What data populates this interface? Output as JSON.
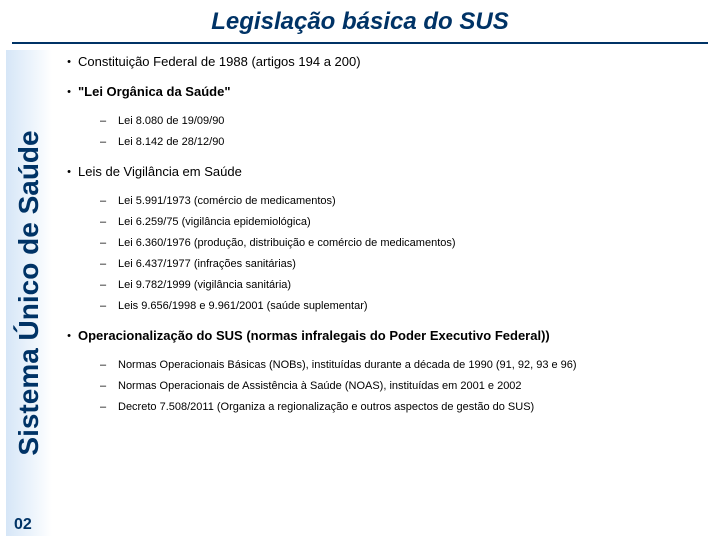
{
  "title": "Legislação básica do SUS",
  "sidebar_label": "Sistema Único de Saúde",
  "page_number": "02",
  "colors": {
    "title": "#003366",
    "sidebar_text": "#003366",
    "body_text": "#000000",
    "sidebar_grad_start": "#d6e6f7",
    "sidebar_grad_end": "#ffffff",
    "divider": "#003366"
  },
  "typography": {
    "title_fontsize": 24,
    "sidebar_fontsize": 28,
    "bullet_fontsize": 13,
    "sub_fontsize": 11
  },
  "bullets": {
    "b1": {
      "text": "Constituição Federal de 1988 (artigos 194 a 200)",
      "bold": false
    },
    "b2": {
      "text": "\"Lei Orgânica da Saúde\"",
      "bold": true
    },
    "b2_sub": {
      "s1": "Lei 8.080 de 19/09/90",
      "s2": "Lei 8.142 de 28/12/90"
    },
    "b3": {
      "text": "Leis de Vigilância em Saúde",
      "bold": false
    },
    "b3_sub": {
      "s1": "Lei 5.991/1973 (comércio de medicamentos)",
      "s2": "Lei 6.259/75 (vigilância epidemiológica)",
      "s3": "Lei 6.360/1976 (produção, distribuição e comércio de medicamentos)",
      "s4": "Lei 6.437/1977 (infrações sanitárias)",
      "s5": "Lei 9.782/1999 (vigilância sanitária)",
      "s6": "Leis 9.656/1998 e 9.961/2001 (saúde suplementar)"
    },
    "b4": {
      "text": "Operacionalização do SUS (normas infralegais do Poder Executivo Federal))",
      "bold": true
    },
    "b4_sub": {
      "s1": "Normas Operacionais Básicas (NOBs), instituídas durante a década de 1990 (91, 92, 93 e 96)",
      "s2": "Normas Operacionais de Assistência à Saúde (NOAS), instituídas em 2001 e 2002",
      "s3": "Decreto 7.508/2011 (Organiza a regionalização e outros aspectos de gestão do SUS)"
    }
  }
}
